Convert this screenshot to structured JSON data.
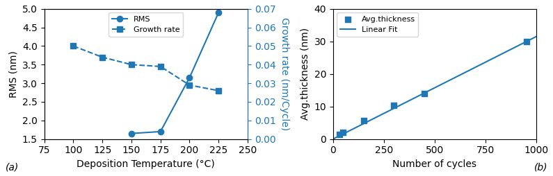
{
  "chart_data": [
    {
      "type": "line",
      "x": [
        100,
        125,
        150,
        175,
        200,
        225
      ],
      "series": [
        {
          "name": "RMS",
          "values": [
            null,
            null,
            1.65,
            1.7,
            3.15,
            4.9
          ],
          "marker": "o",
          "line_style": "solid"
        },
        {
          "name": "Growth rate",
          "values": [
            0.05,
            0.044,
            0.04,
            0.039,
            0.029,
            0.026
          ],
          "axis": "y2",
          "marker": "s",
          "line_style": "dashed"
        }
      ],
      "xlabel": "Deposition Temperature (°C)",
      "ylabel": "RMS (nm)",
      "y2label": "Growth rate (nm/Cycle)",
      "xlim": [
        75,
        250
      ],
      "xticks": [
        75,
        100,
        125,
        150,
        175,
        200,
        225,
        250
      ],
      "ylim": [
        1.5,
        5.0
      ],
      "yticks": [
        1.5,
        2.0,
        2.5,
        3.0,
        3.5,
        4.0,
        4.5,
        5.0
      ],
      "y2lim": [
        0.0,
        0.07
      ],
      "y2ticks": [
        {
          "value": 0.0,
          "label": "0.00"
        },
        {
          "value": 0.01,
          "label": "0.01"
        },
        {
          "value": 0.02,
          "label": "0.02"
        },
        {
          "value": 0.03,
          "label": "0.03"
        },
        {
          "value": 0.04,
          "label": "0.04"
        },
        {
          "value": 0.05,
          "label": "0.05"
        },
        {
          "value": 0.06,
          "label": "0.06"
        },
        {
          "value": 0.07,
          "label": "0.07"
        }
      ],
      "legend": "upper center",
      "annotation": "(a)"
    },
    {
      "type": "scatter",
      "series": [
        {
          "name": "Avg.thickness",
          "type": "scatter",
          "x": [
            30,
            50,
            150,
            300,
            450,
            950
          ],
          "values": [
            1.5,
            2.0,
            5.7,
            10.3,
            14.0,
            30.0
          ],
          "marker": "s"
        },
        {
          "name": "Linear Fit",
          "type": "line",
          "x": [
            0,
            1000
          ],
          "values": [
            0,
            31.5
          ],
          "line_style": "solid"
        }
      ],
      "xlabel": "Number of cycles",
      "ylabel": "Avg.thickness (nm)",
      "xlim": [
        0,
        1000
      ],
      "xticks": [
        0,
        250,
        500,
        750,
        1000
      ],
      "ylim": [
        0,
        40
      ],
      "yticks": [
        0,
        10,
        20,
        30,
        40
      ],
      "legend": "upper left",
      "annotation": "(b)"
    }
  ]
}
